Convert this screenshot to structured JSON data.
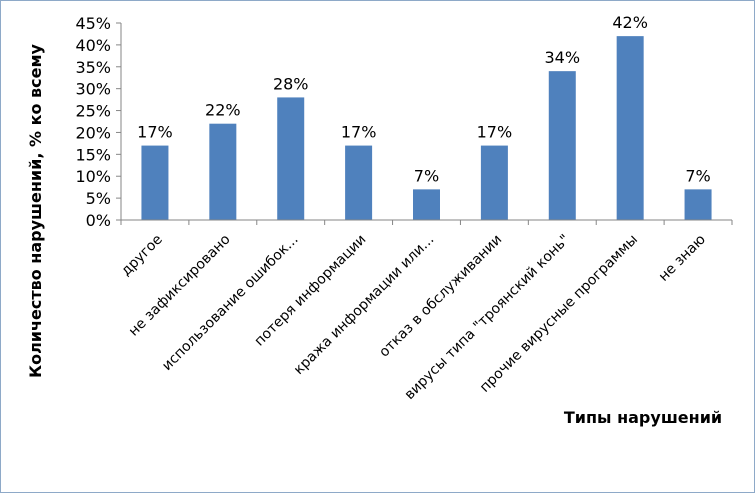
{
  "chart_data": {
    "type": "bar",
    "title": "",
    "xlabel": "Типы нарушений",
    "ylabel": "Количество нарушений, % ко всему",
    "ylim": [
      0,
      45
    ],
    "yticks": [
      "0%",
      "5%",
      "10%",
      "15%",
      "20%",
      "25%",
      "30%",
      "35%",
      "40%",
      "45%"
    ],
    "grid": false,
    "legend": "none",
    "bar_color": "#4F81BD",
    "categories": [
      "другое",
      "не зафиксировано",
      "использование ошибок...",
      "потеря информации",
      "кража информации или...",
      "отказ в обслуживании",
      "вирусы типа \"троянский конь\"",
      "прочие вирусные программы",
      "не знаю"
    ],
    "values": [
      17,
      22,
      28,
      17,
      7,
      17,
      34,
      42,
      7
    ],
    "data_labels": [
      "17%",
      "22%",
      "28%",
      "17%",
      "7%",
      "17%",
      "34%",
      "42%",
      "7%"
    ]
  }
}
